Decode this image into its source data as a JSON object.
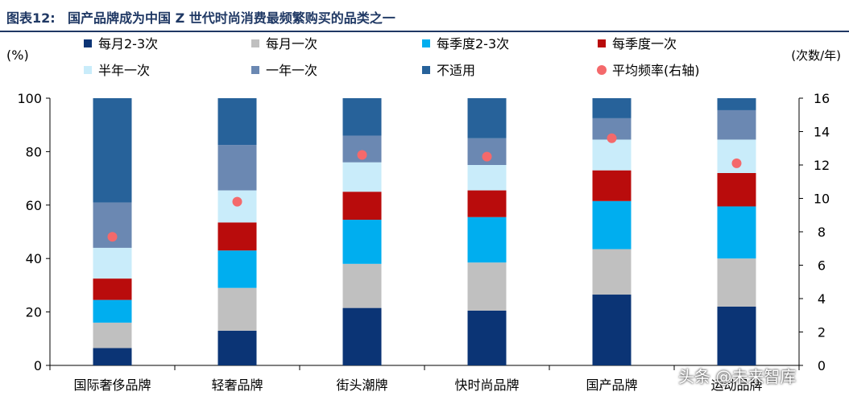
{
  "header": {
    "figure_label": "图表12:",
    "title": "国产品牌成为中国 Z 世代时尚消费最频繁购买的品类之一"
  },
  "watermark": "头条 @未来智库",
  "chart_data": {
    "type": "bar",
    "stacked": true,
    "categories": [
      "国际奢侈品牌",
      "轻奢品牌",
      "街头潮牌",
      "快时尚品牌",
      "国产品牌",
      "运动品牌"
    ],
    "ylabel": "(%)",
    "ylim": [
      0,
      100
    ],
    "yticks": [
      0,
      20,
      40,
      60,
      80,
      100
    ],
    "y2label": "(次数/年)",
    "y2lim": [
      0,
      16
    ],
    "y2ticks": [
      0,
      2,
      4,
      6,
      8,
      10,
      12,
      14,
      16
    ],
    "legend_position": "top",
    "series": [
      {
        "name": "每月2-3次",
        "color": "#0b3475",
        "values": [
          6.5,
          13,
          21.5,
          20.5,
          26.5,
          22
        ]
      },
      {
        "name": "每月一次",
        "color": "#c0c0c0",
        "values": [
          9.5,
          16,
          16.5,
          18,
          17,
          18
        ]
      },
      {
        "name": "每季度2-3次",
        "color": "#00aeef",
        "values": [
          8.5,
          14,
          16.5,
          17,
          18,
          19.5
        ]
      },
      {
        "name": "每季度一次",
        "color": "#b90c0c",
        "values": [
          8,
          10.5,
          10.5,
          10,
          11.5,
          12.5
        ]
      },
      {
        "name": "半年一次",
        "color": "#c9ecfa",
        "values": [
          11.5,
          12,
          11,
          9.5,
          11.5,
          12.5
        ]
      },
      {
        "name": "一年一次",
        "color": "#6b88b2",
        "values": [
          17,
          17,
          10,
          10,
          8,
          11
        ]
      },
      {
        "name": "不适用",
        "color": "#27629a",
        "values": [
          39,
          17.5,
          14,
          15,
          7.5,
          4.5
        ]
      }
    ],
    "line_series": {
      "name": "平均频率(右轴)",
      "axis": "right",
      "color": "#f4696b",
      "values": [
        7.7,
        9.8,
        12.6,
        12.5,
        13.6,
        12.1
      ]
    }
  }
}
